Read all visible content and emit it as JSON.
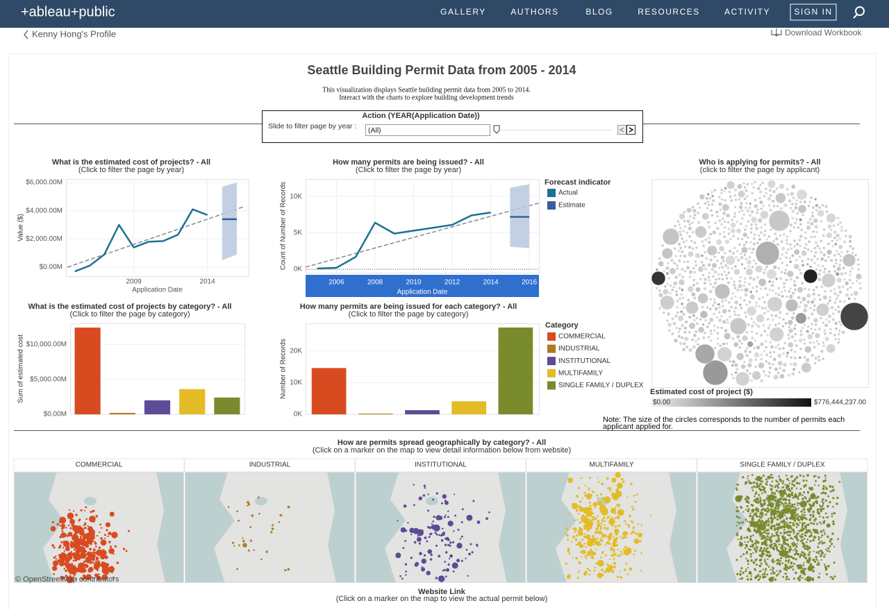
{
  "nav": {
    "logo": "+ableau+public",
    "items": [
      "GALLERY",
      "AUTHORS",
      "BLOG",
      "RESOURCES",
      "ACTIVITY"
    ],
    "sign_in": "SIGN IN"
  },
  "breadcrumb": "Kenny Hong's Profile",
  "download": "Download Workbook",
  "header": {
    "title": "Seattle Building Permit Data from 2005 - 2014",
    "description": [
      "This visualization displays Seattle building permit data from 2005 to 2014.",
      "Interact with the charts to explore building development trends"
    ]
  },
  "filter": {
    "title": "Action (YEAR(Application Date))",
    "label": "Slide to filter page by year :",
    "value": "(All)"
  },
  "chart_data": [
    {
      "type": "line",
      "title": "What is the estimated cost of projects? - All",
      "subtitle": "(Click to filter the page by year)",
      "x_label": "Application Date",
      "y_label": "Value ($)",
      "x": [
        2005,
        2006,
        2007,
        2008,
        2009,
        2010,
        2011,
        2012,
        2013,
        2014,
        2015,
        2016
      ],
      "series": [
        {
          "color": "#1b7291",
          "values": [
            -300,
            100,
            900,
            3000,
            1400,
            1800,
            1850,
            2300,
            4100,
            3700,
            null,
            null
          ]
        },
        {
          "color": "#2f5b9c",
          "values": [
            null,
            null,
            null,
            null,
            null,
            null,
            null,
            null,
            null,
            null,
            3400,
            3400
          ],
          "low": [
            null,
            null,
            null,
            null,
            null,
            null,
            null,
            null,
            null,
            null,
            500,
            900
          ],
          "high": [
            null,
            null,
            null,
            null,
            null,
            null,
            null,
            null,
            null,
            null,
            5700,
            6000
          ]
        }
      ],
      "trend": {
        "x": [
          2004.5,
          2016.5
        ],
        "values": [
          0,
          4300
        ]
      },
      "xlim": [
        2004.4,
        2016.8
      ],
      "ylim": [
        -640,
        6250
      ],
      "xticks": [
        2009,
        2014
      ],
      "yticks": [
        {
          "value": 0,
          "label": "$0.00M"
        },
        {
          "value": 2000,
          "label": "$2,000.00M"
        },
        {
          "value": 4000,
          "label": "$4,000.00M"
        },
        {
          "value": 6000,
          "label": "$6,000.00M"
        }
      ]
    },
    {
      "type": "line",
      "title": "How many permits are being issued? - All",
      "subtitle": "(Click to filter the page by year)",
      "x_label": "Application Date",
      "y_label": "Count of Number of Records",
      "legend_title": "Forecast indicator",
      "x": [
        2005,
        2006,
        2007,
        2008,
        2009,
        2010,
        2011,
        2012,
        2013,
        2014,
        2015,
        2016
      ],
      "series": [
        {
          "name": "Actual",
          "color": "#1b7291",
          "values": [
            100,
            200,
            1700,
            6400,
            4900,
            5300,
            5700,
            6100,
            7400,
            7800,
            null,
            null
          ]
        },
        {
          "name": "Estimate",
          "color": "#3a5e9a",
          "values": [
            null,
            null,
            null,
            null,
            null,
            null,
            null,
            null,
            null,
            null,
            7200,
            7200
          ],
          "low": [
            null,
            null,
            null,
            null,
            null,
            null,
            null,
            null,
            null,
            null,
            3100,
            2900
          ],
          "high": [
            null,
            null,
            null,
            null,
            null,
            null,
            null,
            null,
            null,
            null,
            11200,
            11700
          ]
        }
      ],
      "trend": {
        "x": [
          2004.4,
          2016.5
        ],
        "values": [
          300,
          9100
        ]
      },
      "xlim": [
        2004.4,
        2016.5
      ],
      "ylim": [
        -480,
        12400
      ],
      "xticks": [
        2006,
        2008,
        2010,
        2012,
        2014,
        2016
      ],
      "yticks": [
        {
          "value": 0,
          "label": "0K"
        },
        {
          "value": 5000,
          "label": "5K"
        },
        {
          "value": 10000,
          "label": "10K"
        }
      ]
    },
    {
      "type": "bar",
      "title": "What is the estimated cost of projects by category? - All",
      "subtitle": "(Click to filter the page by category)",
      "y_label": "Sum of estimated cost",
      "values": [
        12400,
        200,
        2000,
        3600,
        2400
      ],
      "colors": [
        "#d84b20",
        "#b07a1e",
        "#5d4b96",
        "#e3bc26",
        "#7a8b2e"
      ],
      "ylim": [
        0,
        13000
      ],
      "yticks": [
        {
          "value": 0,
          "label": "$0.00M"
        },
        {
          "value": 5000,
          "label": "$5,000.00M"
        },
        {
          "value": 10000,
          "label": "$10,000.00M"
        }
      ]
    },
    {
      "type": "bar",
      "title": "How many permits are being issued for each category? - All",
      "subtitle": "(Click to filter the page by category)",
      "y_label": "Number of Records",
      "legend_title": "Category",
      "categories": [
        "COMMERCIAL",
        "INDUSTRIAL",
        "INSTITUTIONAL",
        "MULTIFAMILY",
        "SINGLE FAMILY / DUPLEX"
      ],
      "values": [
        14600,
        200,
        1300,
        4100,
        27400
      ],
      "colors": [
        "#d84b20",
        "#b07a1e",
        "#5d4b96",
        "#e3bc26",
        "#7a8b2e"
      ],
      "ylim": [
        0,
        28700
      ],
      "yticks": [
        {
          "value": 0,
          "label": "0K"
        },
        {
          "value": 10000,
          "label": "10K"
        },
        {
          "value": 20000,
          "label": "20K"
        }
      ]
    }
  ],
  "bubble_chart": {
    "title": "Who is applying for permits? - All",
    "subtitle": "(click to filter the page by applicant)",
    "color_legend": {
      "title": "Estimated cost of project ($)",
      "min": {
        "value": 0,
        "label": "$0.00"
      },
      "max": {
        "value": 776444237,
        "label": "$776,444,237.00"
      }
    },
    "note": [
      "Note: The size of the circles corresponds to the number of permits each",
      "applicant applied for."
    ]
  },
  "maps": {
    "title": "How are permits spread geographically by category? - All",
    "subtitle": "(Click on a marker on the map to view detail information below from website)",
    "panels": [
      "COMMERCIAL",
      "INDUSTRIAL",
      "INSTITUTIONAL",
      "MULTIFAMILY",
      "SINGLE FAMILY / DUPLEX"
    ],
    "attribution": "© OpenStreetMap contributors"
  },
  "website": {
    "title": "Website Link",
    "subtitle": "(Click on a marker on the map to view the actual permit below)"
  }
}
